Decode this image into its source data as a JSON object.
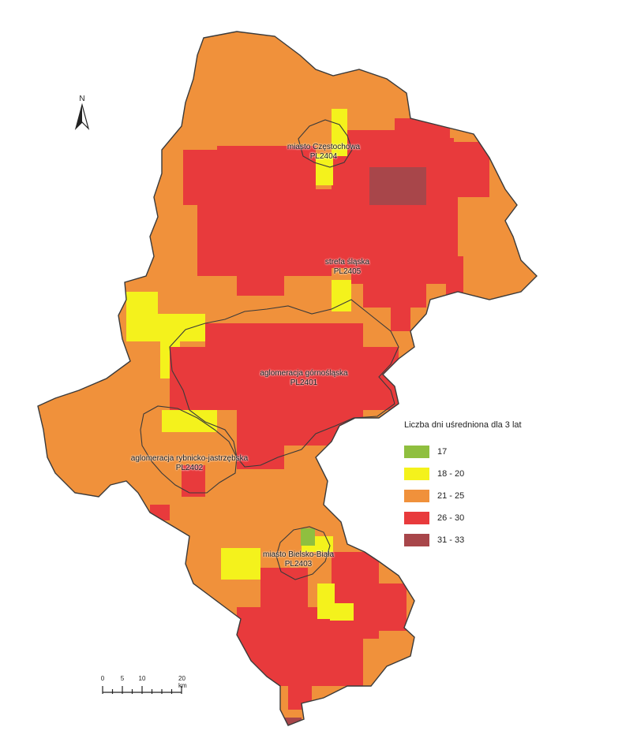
{
  "colors": {
    "c17": "#8fbf3f",
    "c18_20": "#f4f21c",
    "c21_25": "#f0913b",
    "c26_30": "#e83a3c",
    "c31_33": "#a8464a",
    "border": "#3a3a3a"
  },
  "north_arrow": {
    "label": "N",
    "icon": "north-arrow-icon"
  },
  "zones": [
    {
      "id": "czestochowa",
      "line1": "miasto Częstochowa",
      "line2": "PL2404"
    },
    {
      "id": "strefa",
      "line1": "strefa śląska",
      "line2": "PL2405"
    },
    {
      "id": "gornoslaska",
      "line1": "aglomeracja górnośląska",
      "line2": "PL2401"
    },
    {
      "id": "rybnicko",
      "line1": "aglomeracja rybnicko-jastrzębska",
      "line2": "PL2402"
    },
    {
      "id": "bielsko",
      "line1": "miasto Bielsko-Biała",
      "line2": "PL2403"
    }
  ],
  "legend": {
    "title": "Liczba dni uśredniona dla 3 lat",
    "items": [
      {
        "label": "17",
        "color": "#8fbf3f"
      },
      {
        "label": "18 - 20",
        "color": "#f4f21c"
      },
      {
        "label": "21 - 25",
        "color": "#f0913b"
      },
      {
        "label": "26 - 30",
        "color": "#e83a3c"
      },
      {
        "label": "31 - 33",
        "color": "#a8464a"
      }
    ]
  },
  "scale": {
    "ticks": [
      "0",
      "5",
      "10",
      "20 km"
    ],
    "values_km": [
      0,
      5,
      10,
      20
    ]
  }
}
